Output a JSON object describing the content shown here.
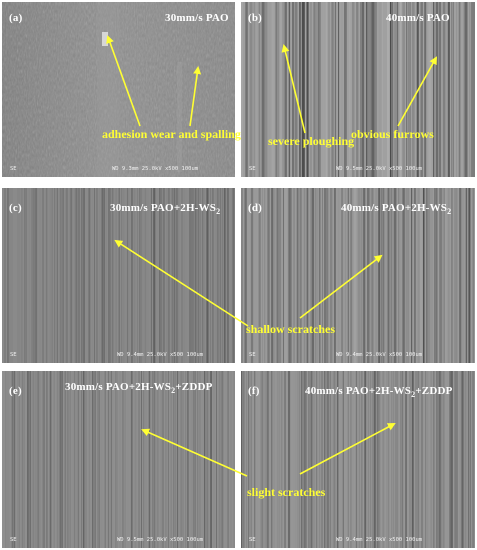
{
  "panels": {
    "a": {
      "letter": "(a)",
      "condition": "30mm/s PAO",
      "footer_se": "SE",
      "footer_info": "WD 9.3mm 25.0kV x500   100um"
    },
    "b": {
      "letter": "(b)",
      "condition": "40mm/s PAO",
      "footer_se": "SE",
      "footer_info": "WD 9.5mm 25.0kV x500   100um"
    },
    "c": {
      "letter": "(c)",
      "condition_pre": "30mm/s PAO+2H-WS",
      "condition_sub": "2",
      "condition_post": "",
      "footer_se": "SE",
      "footer_info": "WD 9.4mm 25.0kV x500 100um"
    },
    "d": {
      "letter": "(d)",
      "condition_pre": "40mm/s PAO+2H-WS",
      "condition_sub": "2",
      "condition_post": "",
      "footer_se": "SE",
      "footer_info": "WD 9.4mm 25.0kV x500   100um"
    },
    "e": {
      "letter": "(e)",
      "condition_pre": "30mm/s PAO+2H-WS",
      "condition_sub": "2",
      "condition_post": "+ZDDP",
      "footer_se": "SE",
      "footer_info": "WD 9.5mm 25.0kV x500   100um"
    },
    "f": {
      "letter": "(f)",
      "condition_pre": "40mm/s PAO+2H-WS",
      "condition_sub": "2",
      "condition_post": "+ZDDP",
      "footer_se": "SE",
      "footer_info": "WD 9.4mm 25.0kV x500   100um"
    }
  },
  "annotations": {
    "adhesion": "adhesion wear and spalling",
    "ploughing": "severe ploughing",
    "furrows": "obvious furrows",
    "shallow": "shallow scratches",
    "slight": "slight scratches"
  },
  "colors": {
    "annotation": "#ffff33",
    "label": "#ffffff"
  }
}
